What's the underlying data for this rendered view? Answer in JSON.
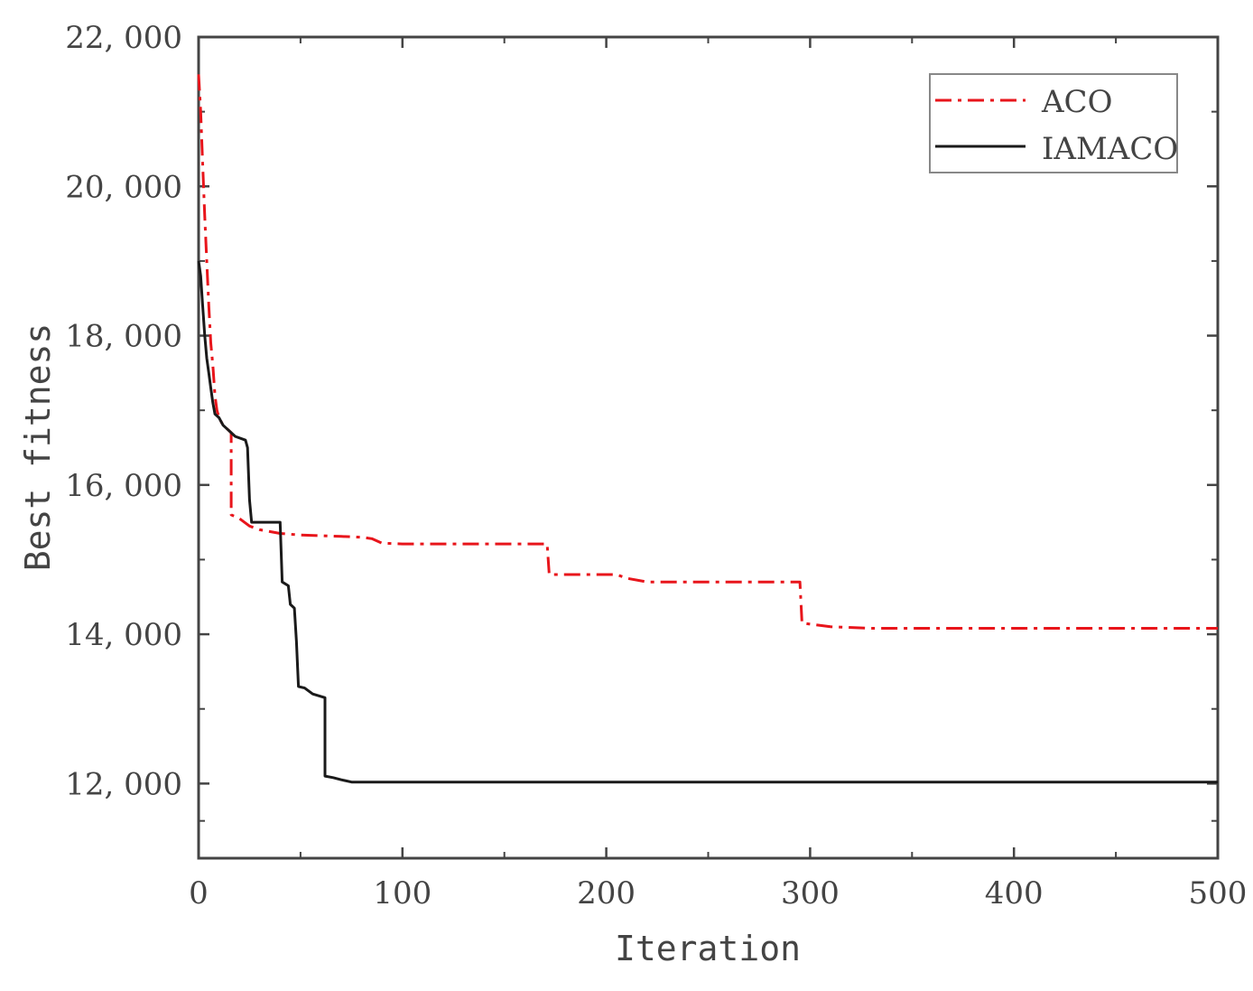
{
  "chart_data": {
    "type": "line",
    "xlabel": "Iteration",
    "ylabel": "Best fitness",
    "xlim": [
      0,
      500
    ],
    "ylim": [
      11000,
      22000
    ],
    "x_ticks": [
      {
        "value": 0,
        "label": "0"
      },
      {
        "value": 100,
        "label": "100"
      },
      {
        "value": 200,
        "label": "200"
      },
      {
        "value": 300,
        "label": "300"
      },
      {
        "value": 400,
        "label": "400"
      },
      {
        "value": 500,
        "label": "500"
      }
    ],
    "y_ticks": [
      {
        "value": 12000,
        "label": "12, 000"
      },
      {
        "value": 14000,
        "label": "14, 000"
      },
      {
        "value": 16000,
        "label": "16, 000"
      },
      {
        "value": 18000,
        "label": "18, 000"
      },
      {
        "value": 20000,
        "label": "20, 000"
      },
      {
        "value": 22000,
        "label": "22, 000"
      }
    ],
    "grid": false,
    "legend_position": "top-right",
    "series": [
      {
        "name": "ACO",
        "color": "#e8151b",
        "style": "dash-dot",
        "points": [
          [
            0,
            21500
          ],
          [
            1,
            21000
          ],
          [
            2,
            20300
          ],
          [
            3,
            19600
          ],
          [
            4,
            19000
          ],
          [
            5,
            18400
          ],
          [
            6,
            17900
          ],
          [
            7,
            17600
          ],
          [
            8,
            17200
          ],
          [
            9,
            17000
          ],
          [
            10,
            16900
          ],
          [
            12,
            16800
          ],
          [
            14,
            16750
          ],
          [
            16,
            16700
          ],
          [
            16,
            15600
          ],
          [
            20,
            15550
          ],
          [
            25,
            15450
          ],
          [
            30,
            15400
          ],
          [
            40,
            15350
          ],
          [
            50,
            15330
          ],
          [
            60,
            15320
          ],
          [
            70,
            15310
          ],
          [
            80,
            15300
          ],
          [
            85,
            15280
          ],
          [
            90,
            15220
          ],
          [
            100,
            15210
          ],
          [
            171,
            15210
          ],
          [
            172,
            14800
          ],
          [
            180,
            14800
          ],
          [
            205,
            14800
          ],
          [
            210,
            14750
          ],
          [
            220,
            14700
          ],
          [
            295,
            14700
          ],
          [
            296,
            14150
          ],
          [
            310,
            14100
          ],
          [
            330,
            14080
          ],
          [
            500,
            14080
          ]
        ]
      },
      {
        "name": "IAMACO",
        "color": "#1a1a1a",
        "style": "solid",
        "points": [
          [
            0,
            19000
          ],
          [
            1,
            18800
          ],
          [
            2,
            18400
          ],
          [
            3,
            18000
          ],
          [
            4,
            17700
          ],
          [
            5,
            17500
          ],
          [
            6,
            17300
          ],
          [
            7,
            17100
          ],
          [
            8,
            16950
          ],
          [
            10,
            16900
          ],
          [
            12,
            16800
          ],
          [
            14,
            16750
          ],
          [
            16,
            16700
          ],
          [
            18,
            16650
          ],
          [
            23,
            16600
          ],
          [
            24,
            16500
          ],
          [
            25,
            15800
          ],
          [
            26,
            15500
          ],
          [
            40,
            15500
          ],
          [
            41,
            14700
          ],
          [
            44,
            14650
          ],
          [
            45,
            14400
          ],
          [
            47,
            14350
          ],
          [
            48,
            13900
          ],
          [
            49,
            13300
          ],
          [
            52,
            13280
          ],
          [
            56,
            13200
          ],
          [
            62,
            13150
          ],
          [
            62,
            12100
          ],
          [
            66,
            12080
          ],
          [
            70,
            12050
          ],
          [
            75,
            12020
          ],
          [
            500,
            12020
          ]
        ]
      }
    ]
  }
}
